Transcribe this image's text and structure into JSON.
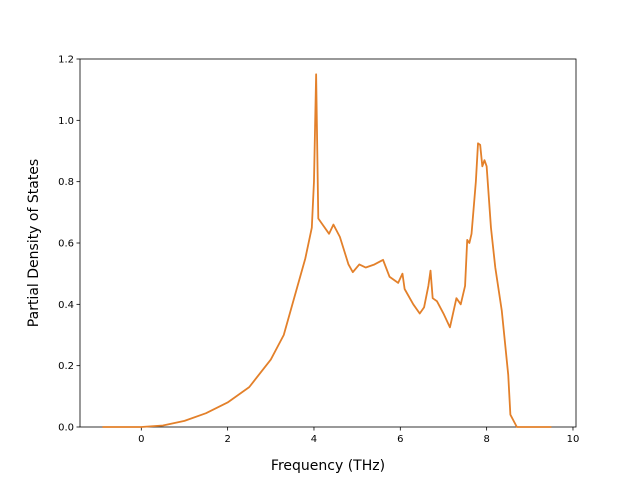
{
  "chart_data": {
    "type": "line",
    "xlabel": "Frequency (THz)",
    "ylabel": "Partial Density of States",
    "x": [
      -0.9,
      0,
      0.5,
      1,
      1.5,
      2,
      2.5,
      3,
      3.3,
      3.6,
      3.8,
      3.95,
      4.0,
      4.05,
      4.1,
      4.2,
      4.35,
      4.45,
      4.6,
      4.8,
      4.9,
      5.05,
      5.2,
      5.4,
      5.6,
      5.75,
      5.95,
      6.05,
      6.1,
      6.3,
      6.45,
      6.55,
      6.65,
      6.7,
      6.75,
      6.85,
      7.0,
      7.15,
      7.3,
      7.4,
      7.5,
      7.55,
      7.6,
      7.65,
      7.75,
      7.8,
      7.85,
      7.9,
      7.95,
      8.0,
      8.1,
      8.2,
      8.35,
      8.5,
      8.55,
      8.7,
      9.5
    ],
    "values": [
      0,
      0,
      0.005,
      0.02,
      0.045,
      0.08,
      0.13,
      0.22,
      0.3,
      0.45,
      0.55,
      0.65,
      0.8,
      1.15,
      0.68,
      0.66,
      0.63,
      0.66,
      0.62,
      0.53,
      0.505,
      0.53,
      0.52,
      0.53,
      0.545,
      0.49,
      0.47,
      0.5,
      0.45,
      0.4,
      0.37,
      0.39,
      0.46,
      0.51,
      0.42,
      0.41,
      0.37,
      0.325,
      0.42,
      0.4,
      0.46,
      0.61,
      0.6,
      0.63,
      0.8,
      0.925,
      0.92,
      0.85,
      0.87,
      0.85,
      0.65,
      0.52,
      0.38,
      0.17,
      0.04,
      0.0,
      0
    ],
    "color": "#e3802a",
    "xlim": [
      -1.42,
      10.07
    ],
    "xticks": [
      0,
      2,
      4,
      6,
      8,
      10
    ],
    "ylim": [
      0,
      1.2
    ],
    "yticks": [
      {
        "value": 0,
        "label": "0.0"
      },
      {
        "value": 0.2,
        "label": "0.2"
      },
      {
        "value": 0.4,
        "label": "0.4"
      },
      {
        "value": 0.6,
        "label": "0.6"
      },
      {
        "value": 0.8,
        "label": "0.8"
      },
      {
        "value": 1.0,
        "label": "1.0"
      },
      {
        "value": 1.2,
        "label": "1.2"
      }
    ]
  }
}
